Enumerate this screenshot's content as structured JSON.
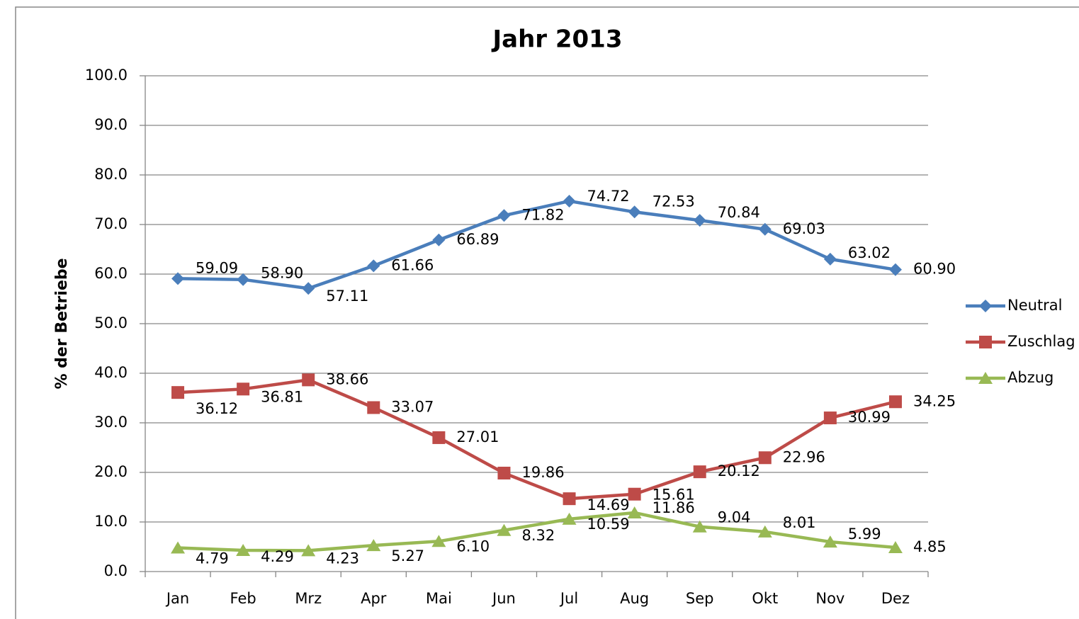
{
  "chart_data": {
    "type": "line",
    "title": "Jahr 2013",
    "y_label": "% der Betriebe",
    "categories": [
      "Jan",
      "Feb",
      "Mrz",
      "Apr",
      "Mai",
      "Jun",
      "Jul",
      "Aug",
      "Sep",
      "Okt",
      "Nov",
      "Dez"
    ],
    "series": [
      {
        "name": "Neutral",
        "color": "#4a7ebb",
        "marker": "diamond",
        "values": [
          59.09,
          58.9,
          57.11,
          61.66,
          66.89,
          71.82,
          74.72,
          72.53,
          70.84,
          69.03,
          63.02,
          60.9
        ],
        "value_labels": [
          "59.09",
          "58.90",
          "57.11",
          "61.66",
          "66.89",
          "71.82",
          "74.72",
          "72.53",
          "70.84",
          "69.03",
          "63.02",
          "60.90"
        ]
      },
      {
        "name": "Zuschlag",
        "color": "#be4b48",
        "marker": "square",
        "values": [
          36.12,
          36.81,
          38.66,
          33.07,
          27.01,
          19.86,
          14.69,
          15.61,
          20.12,
          22.96,
          30.99,
          34.25
        ],
        "value_labels": [
          "36.12",
          "36.81",
          "38.66",
          "33.07",
          "27.01",
          "19.86",
          "14.69",
          "15.61",
          "20.12",
          "22.96",
          "30.99",
          "34.25"
        ]
      },
      {
        "name": "Abzug",
        "color": "#98b954",
        "marker": "triangle",
        "values": [
          4.79,
          4.29,
          4.23,
          5.27,
          6.1,
          8.32,
          10.59,
          11.86,
          9.04,
          8.01,
          5.99,
          4.85
        ],
        "value_labels": [
          "4.79",
          "4.29",
          "4.23",
          "5.27",
          "6.10",
          "8.32",
          "10.59",
          "11.86",
          "9.04",
          "8.01",
          "5.99",
          "4.85"
        ]
      }
    ],
    "ylim": [
      0,
      100
    ],
    "yticks": [
      {
        "value": 0,
        "label": "0.0"
      },
      {
        "value": 10,
        "label": "10.0"
      },
      {
        "value": 20,
        "label": "20.0"
      },
      {
        "value": 30,
        "label": "30.0"
      },
      {
        "value": 40,
        "label": "40.0"
      },
      {
        "value": 50,
        "label": "50.0"
      },
      {
        "value": 60,
        "label": "60.0"
      },
      {
        "value": 70,
        "label": "70.0"
      },
      {
        "value": 80,
        "label": "80.0"
      },
      {
        "value": 90,
        "label": "90.0"
      },
      {
        "value": 100,
        "label": "100.0"
      }
    ],
    "grid": true,
    "legend": "right"
  }
}
